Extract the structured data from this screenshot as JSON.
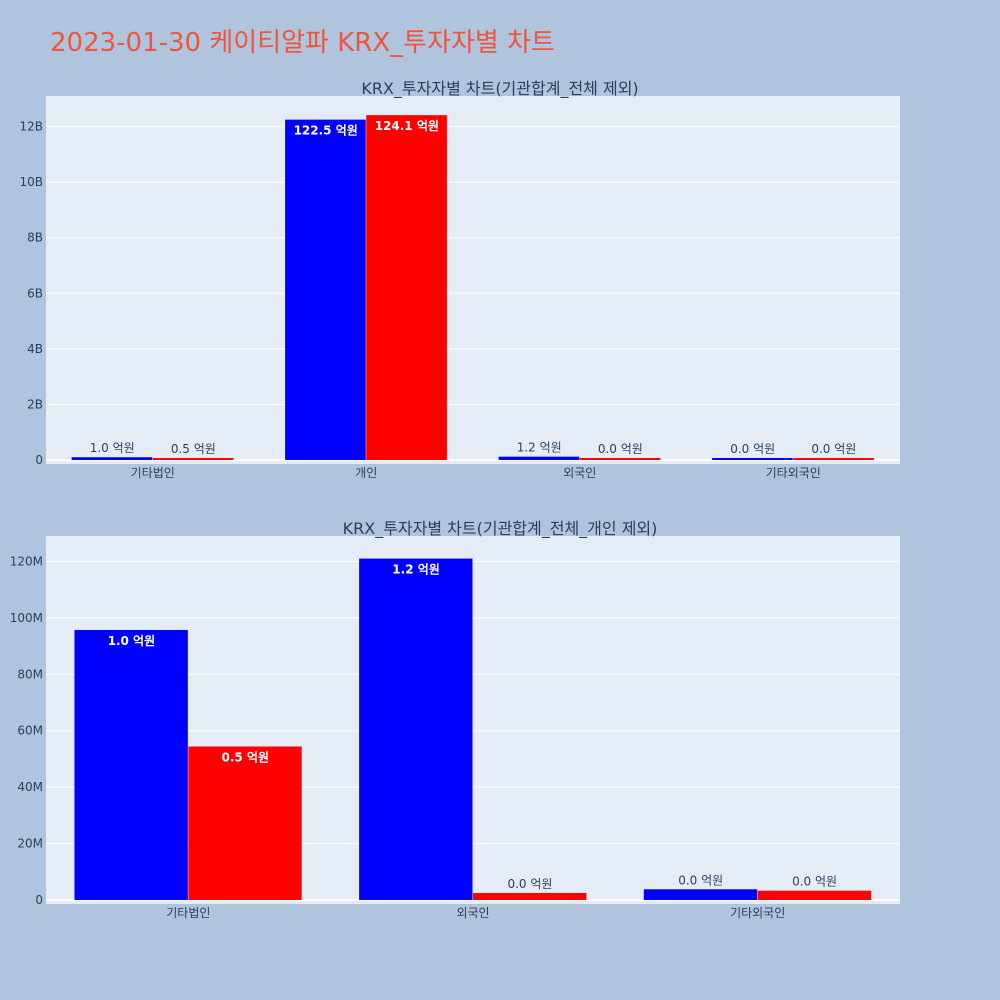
{
  "title": "2023-01-30 케이티알파 KRX_투자자별 차트",
  "colors": {
    "series_a": "#0000ff",
    "series_b": "#ff0000",
    "title": "#ef553b",
    "plot_bg": "#e5ecf6",
    "page_bg": "#b0c4de"
  },
  "chart_data": [
    {
      "type": "bar",
      "title": "KRX_투자자별 차트(기관합계_전체 제외)",
      "categories": [
        "기타법인",
        "개인",
        "외국인",
        "기타외국인"
      ],
      "series": [
        {
          "color": "#0000ff",
          "values": [
            100000000,
            12250000000,
            120000000,
            0
          ],
          "labels": [
            "1.0 억원",
            "122.5 억원",
            "1.2 억원",
            "0.0 억원"
          ]
        },
        {
          "color": "#ff0000",
          "values": [
            50000000,
            12410000000,
            0,
            0
          ],
          "labels": [
            "0.5 억원",
            "124.1 억원",
            "0.0 억원",
            "0.0 억원"
          ]
        }
      ],
      "ylim": [
        0,
        13100000000
      ],
      "yticks": [
        {
          "value": 0,
          "label": "0"
        },
        {
          "value": 2000000000,
          "label": "2B"
        },
        {
          "value": 4000000000,
          "label": "4B"
        },
        {
          "value": 6000000000,
          "label": "6B"
        },
        {
          "value": 8000000000,
          "label": "8B"
        },
        {
          "value": 10000000000,
          "label": "10B"
        },
        {
          "value": 12000000000,
          "label": "12B"
        }
      ],
      "grid": true
    },
    {
      "type": "bar",
      "title": "KRX_투자자별 차트(기관합계_전체_개인 제외)",
      "categories": [
        "기타법인",
        "외국인",
        "기타외국인"
      ],
      "series": [
        {
          "color": "#0000ff",
          "values": [
            95700000,
            121000000,
            3800000
          ],
          "labels": [
            "1.0 억원",
            "1.2 억원",
            "0.0 억원"
          ]
        },
        {
          "color": "#ff0000",
          "values": [
            54400000,
            2500000,
            3300000
          ],
          "labels": [
            "0.5 억원",
            "0.0 억원",
            "0.0 억원"
          ]
        }
      ],
      "ylim": [
        0,
        129000000
      ],
      "yticks": [
        {
          "value": 0,
          "label": "0"
        },
        {
          "value": 20000000,
          "label": "20M"
        },
        {
          "value": 40000000,
          "label": "40M"
        },
        {
          "value": 60000000,
          "label": "60M"
        },
        {
          "value": 80000000,
          "label": "80M"
        },
        {
          "value": 100000000,
          "label": "100M"
        },
        {
          "value": 120000000,
          "label": "120M"
        }
      ],
      "grid": true
    }
  ]
}
